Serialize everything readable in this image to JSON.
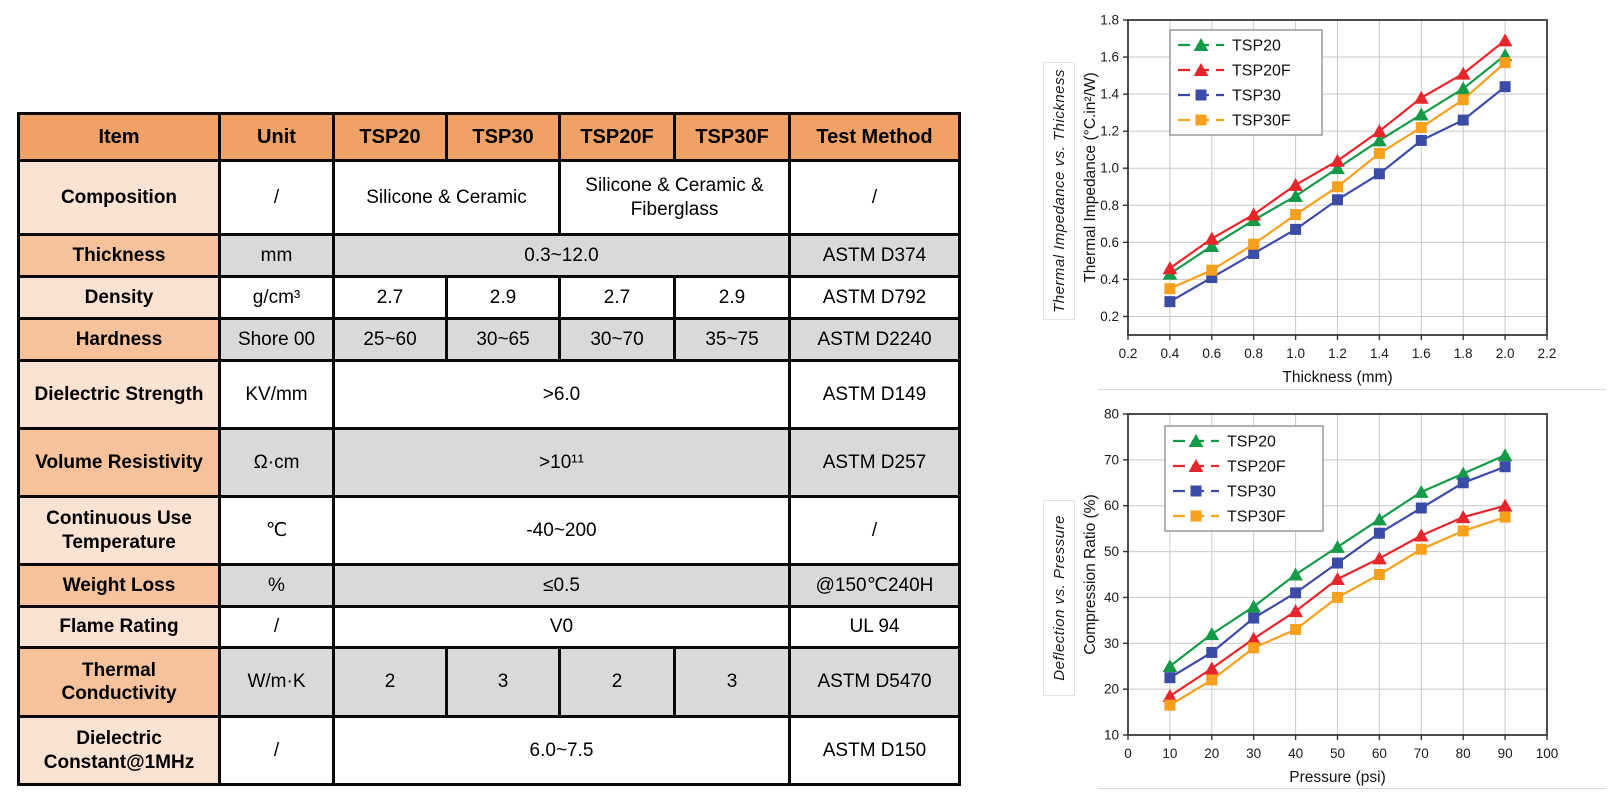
{
  "colors": {
    "table_header": "#F0A266",
    "band_light": "#FBE3D3",
    "band_medium": "#F5C29B",
    "shade_gray": "#D9D9D9",
    "tsp20": "#159B48",
    "tsp20f": "#E7262C",
    "tsp30": "#3B4CA6",
    "tsp30f": "#F7A01D"
  },
  "table": {
    "columns": [
      "Item",
      "Unit",
      "TSP20",
      "TSP30",
      "TSP20F",
      "TSP30F",
      "Test Method"
    ],
    "rows": [
      {
        "item": "Composition",
        "unit": "/",
        "cells": [
          {
            "text": "Silicone & Ceramic",
            "span": 2
          },
          {
            "text": "Silicone & Ceramic & Fiberglass",
            "span": 2
          }
        ],
        "test": "/"
      },
      {
        "item": "Thickness",
        "unit": "mm",
        "cells": [
          {
            "text": "0.3~12.0",
            "span": 4
          }
        ],
        "test": "ASTM D374"
      },
      {
        "item": "Density",
        "unit": "g/cm³",
        "cells": [
          {
            "text": "2.7",
            "span": 1
          },
          {
            "text": "2.9",
            "span": 1
          },
          {
            "text": "2.7",
            "span": 1
          },
          {
            "text": "2.9",
            "span": 1
          }
        ],
        "test": "ASTM D792"
      },
      {
        "item": "Hardness",
        "unit": "Shore 00",
        "cells": [
          {
            "text": "25~60",
            "span": 1
          },
          {
            "text": "30~65",
            "span": 1
          },
          {
            "text": "30~70",
            "span": 1
          },
          {
            "text": "35~75",
            "span": 1
          }
        ],
        "test": "ASTM D2240"
      },
      {
        "item": "Dielectric Strength",
        "unit": "KV/mm",
        "cells": [
          {
            "text": ">6.0",
            "span": 4
          }
        ],
        "test": "ASTM D149"
      },
      {
        "item": "Volume Resistivity",
        "unit": "Ω·cm",
        "cells": [
          {
            "text": ">10¹¹",
            "span": 4
          }
        ],
        "test": "ASTM D257"
      },
      {
        "item": "Continuous Use Temperature",
        "unit": "℃",
        "cells": [
          {
            "text": "-40~200",
            "span": 4
          }
        ],
        "test": "/"
      },
      {
        "item": "Weight Loss",
        "unit": "%",
        "cells": [
          {
            "text": "≤0.5",
            "span": 4
          }
        ],
        "test": "@150℃240H"
      },
      {
        "item": "Flame Rating",
        "unit": "/",
        "cells": [
          {
            "text": "V0",
            "span": 4
          }
        ],
        "test": "UL 94"
      },
      {
        "item": "Thermal Conductivity",
        "unit": "W/m·K",
        "cells": [
          {
            "text": "2",
            "span": 1
          },
          {
            "text": "3",
            "span": 1
          },
          {
            "text": "2",
            "span": 1
          },
          {
            "text": "3",
            "span": 1
          }
        ],
        "test": "ASTM D5470"
      },
      {
        "item": "Dielectric Constant@1MHz",
        "unit": "/",
        "cells": [
          {
            "text": "6.0~7.5",
            "span": 4
          }
        ],
        "test": "ASTM D150"
      }
    ]
  },
  "chart_data": [
    {
      "type": "line",
      "title": "Thermal Impedance vs. Thickness",
      "xlabel": "Thickness (mm)",
      "ylabel": "Thermal Impedance (°C.in²/W)",
      "x": [
        0.4,
        0.6,
        0.8,
        1.0,
        1.2,
        1.4,
        1.6,
        1.8,
        2.0
      ],
      "xlim": [
        0.2,
        2.2
      ],
      "ylim": [
        0.1,
        1.8
      ],
      "xticks": [
        "0.2",
        "0.4",
        "0.6",
        "0.8",
        "1.0",
        "1.2",
        "1.4",
        "1.6",
        "1.8",
        "2.0",
        "2.2"
      ],
      "yticks": [
        "0.2",
        "0.4",
        "0.6",
        "0.8",
        "1.0",
        "1.2",
        "1.4",
        "1.6",
        "1.8"
      ],
      "grid": true,
      "legend_position": "upper-left",
      "series": [
        {
          "name": "TSP20",
          "color": "#159B48",
          "marker": "triangle",
          "values": [
            0.43,
            0.58,
            0.72,
            0.85,
            1.0,
            1.15,
            1.29,
            1.43,
            1.61
          ]
        },
        {
          "name": "TSP20F",
          "color": "#E7262C",
          "marker": "triangle",
          "values": [
            0.46,
            0.62,
            0.75,
            0.91,
            1.04,
            1.2,
            1.38,
            1.51,
            1.69
          ]
        },
        {
          "name": "TSP30",
          "color": "#3B4CA6",
          "marker": "square",
          "values": [
            0.28,
            0.41,
            0.54,
            0.67,
            0.83,
            0.97,
            1.15,
            1.26,
            1.44
          ]
        },
        {
          "name": "TSP30F",
          "color": "#F7A01D",
          "marker": "square",
          "values": [
            0.35,
            0.45,
            0.59,
            0.75,
            0.9,
            1.08,
            1.22,
            1.37,
            1.57
          ]
        }
      ]
    },
    {
      "type": "line",
      "title": "Deflection vs. Pressure",
      "xlabel": "Pressure (psi)",
      "ylabel": "Compression Ratio (%)",
      "x": [
        10,
        20,
        30,
        40,
        50,
        60,
        70,
        80,
        90
      ],
      "xlim": [
        0,
        100
      ],
      "ylim": [
        10,
        80
      ],
      "xticks": [
        "0",
        "10",
        "20",
        "30",
        "40",
        "50",
        "60",
        "70",
        "80",
        "90",
        "100"
      ],
      "yticks": [
        "10",
        "20",
        "30",
        "40",
        "50",
        "60",
        "70",
        "80"
      ],
      "grid": true,
      "legend_position": "upper-left",
      "series": [
        {
          "name": "TSP20",
          "color": "#159B48",
          "marker": "triangle",
          "values": [
            25,
            32,
            38,
            45,
            51,
            57,
            63,
            67,
            71
          ]
        },
        {
          "name": "TSP20F",
          "color": "#E7262C",
          "marker": "triangle",
          "values": [
            18.5,
            24.5,
            31,
            37,
            44,
            48.5,
            53.5,
            57.5,
            60
          ]
        },
        {
          "name": "TSP30",
          "color": "#3B4CA6",
          "marker": "square",
          "values": [
            22.5,
            28,
            35.5,
            41,
            47.5,
            54,
            59.5,
            65,
            68.5
          ]
        },
        {
          "name": "TSP30F",
          "color": "#F7A01D",
          "marker": "square",
          "values": [
            16.5,
            22,
            29,
            33,
            40,
            45,
            50.5,
            54.5,
            57.5
          ]
        }
      ]
    }
  ]
}
